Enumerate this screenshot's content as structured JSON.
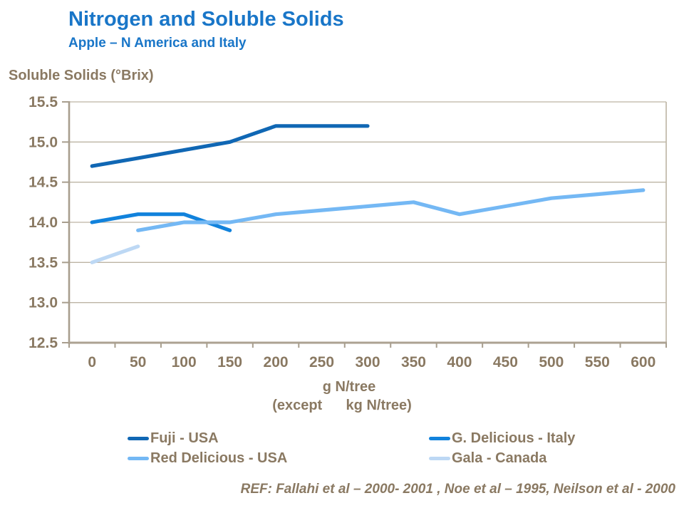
{
  "header": {
    "title": "Nitrogen and Soluble Solids",
    "subtitle": "Apple – N America and Italy"
  },
  "axis_titles": {
    "y": "Soluble Solids (°Brix)",
    "x_line1": "g N/tree",
    "x_line2": "(except      kg N/tree)"
  },
  "footer": {
    "ref": "REF: Fallahi et al – 2000- 2001 , Noe et al – 1995, Neilson et al - 2000"
  },
  "colors": {
    "title_blue": "#1976C8",
    "text_brown": "#8A7962",
    "gridline": "#BDB4A4",
    "axis_line": "#A89E8E"
  },
  "chart_data": {
    "type": "line",
    "title": "Nitrogen and Soluble Solids — Apple, N America and Italy",
    "xlabel": "g N/tree (except kg N/tree)",
    "ylabel": "Soluble Solids (°Brix)",
    "xticks": [
      0,
      50,
      100,
      150,
      200,
      250,
      300,
      350,
      400,
      450,
      500,
      550,
      600
    ],
    "xtick_step": 50,
    "yticks": [
      12.5,
      13.0,
      13.5,
      14.0,
      14.5,
      15.0,
      15.5
    ],
    "ylim": [
      12.5,
      15.5
    ],
    "grid": true,
    "legend_position": "bottom",
    "series": [
      {
        "name": "Fuji - USA",
        "color": "#1067B4",
        "x": [
          0,
          50,
          100,
          150,
          200,
          250,
          300
        ],
        "y": [
          14.7,
          14.8,
          14.9,
          15.0,
          15.2,
          15.2,
          15.2
        ]
      },
      {
        "name": "G. Delicious - Italy",
        "color": "#1182DC",
        "x": [
          0,
          50,
          100,
          150
        ],
        "y": [
          14.0,
          14.1,
          14.1,
          13.9
        ]
      },
      {
        "name": "Red Delicious - USA",
        "color": "#74B8F4",
        "x": [
          50,
          100,
          150,
          200,
          250,
          300,
          350,
          400,
          450,
          500,
          550,
          600
        ],
        "y": [
          13.9,
          14.0,
          14.0,
          14.1,
          14.15,
          14.2,
          14.25,
          14.1,
          14.2,
          14.3,
          14.35,
          14.4
        ]
      },
      {
        "name": "Gala - Canada",
        "color": "#BDD8F4",
        "x": [
          0,
          50
        ],
        "y": [
          13.5,
          13.7
        ]
      }
    ]
  },
  "legend": {
    "items": [
      {
        "label": "Fuji - USA",
        "color": "#1067B4",
        "col": 0,
        "row": 0
      },
      {
        "label": "Red Delicious - USA",
        "color": "#74B8F4",
        "col": 0,
        "row": 1
      },
      {
        "label": "G. Delicious - Italy",
        "color": "#1182DC",
        "col": 1,
        "row": 0
      },
      {
        "label": "Gala - Canada",
        "color": "#BDD8F4",
        "col": 1,
        "row": 1
      }
    ]
  }
}
